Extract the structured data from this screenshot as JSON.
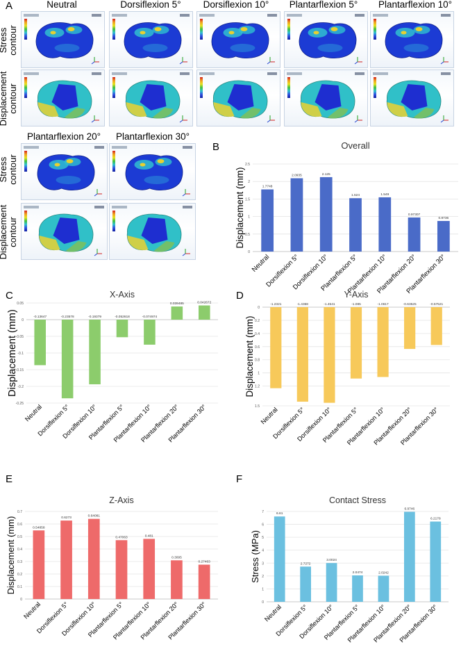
{
  "panelA": {
    "letter": "A",
    "top_titles": [
      "Neutral",
      "Dorsiflexion 5°",
      "Dorsiflexion 10°",
      "Plantarflexion 5°",
      "Plantarflexion 10°"
    ],
    "bottom_titles": [
      "Plantarflexion 20°",
      "Plantarflexion 30°"
    ],
    "row_labels": {
      "stress_1": "Stress",
      "stress_2": "contour",
      "disp_1": "Displacement",
      "disp_2": "contour"
    },
    "model_colors": {
      "stress_base": "#1c3bd4",
      "stress_hot": "#e8d030",
      "stress_mid": "#30c0d0",
      "disp_core": "#1e2ed0",
      "disp_mid": "#30c0c8",
      "disp_edge": "#d8d040"
    }
  },
  "chart_data": [
    {
      "id": "B",
      "letter": "B",
      "type": "bar",
      "title": "Overall",
      "ylabel": "Displacement (mm)",
      "color": "#4a6bc8",
      "categories": [
        "Neutral",
        "Dorsiflexion 5°",
        "Dorsiflexion 10°",
        "Plantarflexion 5°",
        "Plantarflexion 10°",
        "Plantarflexion 20°",
        "Plantarflexion 30°"
      ],
      "values": [
        1.7748,
        2.0935,
        2.125,
        1.524,
        1.549,
        0.97307,
        0.8736
      ],
      "value_labels": [
        "1.7748",
        "2.0935",
        "2.125",
        "1.524",
        "1.549",
        "0.97307",
        "0.8736"
      ],
      "ylim": [
        0,
        2.5
      ],
      "yticks": [
        0,
        0.5,
        1,
        1.5,
        2,
        2.5
      ],
      "ytick_labels": [
        "0",
        "0.5",
        "1",
        "1.5",
        "2",
        "2.5"
      ],
      "grid": true
    },
    {
      "id": "C",
      "letter": "C",
      "type": "bar",
      "title": "X-Axis",
      "ylabel": "Displacement (mm)",
      "color": "#8ccc6c",
      "categories": [
        "Neutral",
        "Dorsiflexion 5°",
        "Dorsiflexion 10°",
        "Plantarflexion 5°",
        "Plantarflexion 10°",
        "Plantarflexion 20°",
        "Plantarflexion 30°"
      ],
      "values": [
        -0.13647,
        -0.23578,
        -0.19379,
        -0.052618,
        -0.074974,
        0.039485,
        0.042672
      ],
      "value_labels": [
        "-0.13647",
        "-0.23578",
        "-0.19379",
        "-0.052618",
        "-0.074974",
        "0.039485",
        "0.042672"
      ],
      "ylim": [
        -0.25,
        0.05
      ],
      "yticks": [
        -0.25,
        -0.2,
        -0.15,
        -0.1,
        -0.05,
        0,
        0.05
      ],
      "ytick_labels": [
        "-0.25",
        "-0.2",
        "-0.15",
        "-0.1",
        "-0.05",
        "0",
        "0.05"
      ],
      "labels_at_zero": true,
      "grid": true
    },
    {
      "id": "D",
      "letter": "D",
      "type": "bar",
      "title": "Y-Axis",
      "ylabel": "Displacement (mm)",
      "color": "#f7c95a",
      "categories": [
        "Neutral",
        "Dorsiflexion 5°",
        "Dorsiflexion 10°",
        "Plantarflexion 5°",
        "Plantarflexion 10°",
        "Plantarflexion 20°",
        "Plantarflexion 30°"
      ],
      "values": [
        -1.2321,
        -1.4368,
        -1.4541,
        -1.085,
        -1.0617,
        -0.63525,
        -0.57521
      ],
      "value_labels": [
        "-1.2321",
        "-1.4368",
        "-1.4541",
        "-1.085",
        "-1.0617",
        "-0.63525",
        "-0.57521"
      ],
      "ylim": [
        -1.5,
        0
      ],
      "yticks": [
        0,
        -0.2,
        -0.4,
        -0.6,
        -0.8,
        -1,
        -1.2,
        -1.5
      ],
      "ytick_labels": [
        "0",
        "0.2",
        "0.4",
        "0.6",
        "0.8",
        "1",
        "1.2",
        "1.5"
      ],
      "labels_at_zero": true,
      "grid": true
    },
    {
      "id": "E",
      "letter": "E",
      "type": "bar",
      "title": "Z-Axis",
      "ylabel": "Displacement (mm)",
      "color": "#ee6a6a",
      "categories": [
        "Neutral",
        "Dorsiflexion 5°",
        "Dorsiflexion 10°",
        "Plantarflexion 5°",
        "Plantarflexion 10°",
        "Plantarflexion 20°",
        "Plantarflexion 30°"
      ],
      "values": [
        0.54858,
        0.6273,
        0.64081,
        0.47063,
        0.481,
        0.3095,
        0.27463
      ],
      "value_labels": [
        "0.54858",
        "0.6273",
        "0.64081",
        "0.47063",
        "0.481",
        "0.3095",
        "0.27463"
      ],
      "ylim": [
        0,
        0.7
      ],
      "yticks": [
        0,
        0.1,
        0.2,
        0.3,
        0.4,
        0.5,
        0.6,
        0.7
      ],
      "ytick_labels": [
        "0",
        "0.1",
        "0.2",
        "0.3",
        "0.4",
        "0.5",
        "0.6",
        "0.7"
      ],
      "grid": true
    },
    {
      "id": "F",
      "letter": "F",
      "type": "bar",
      "title": "Contact Stress",
      "ylabel": "Stress (MPa)",
      "color": "#6bc0e0",
      "categories": [
        "Neutral",
        "Dorsiflexion 5°",
        "Dorsiflexion 10°",
        "Plantarflexion 5°",
        "Plantarflexion 10°",
        "Plantarflexion 20°",
        "Plantarflexion 30°"
      ],
      "values": [
        6.61,
        2.7272,
        3.0024,
        2.0474,
        2.0242,
        6.9746,
        6.2178
      ],
      "value_labels": [
        "6.61",
        "2.7272",
        "3.0024",
        "2.0474",
        "2.0242",
        "6.9746",
        "6.2178"
      ],
      "ylim": [
        0,
        7
      ],
      "yticks": [
        0,
        1,
        2,
        3,
        4,
        5,
        6,
        7
      ],
      "ytick_labels": [
        "0",
        "1",
        "2",
        "3",
        "4",
        "5",
        "6",
        "7"
      ],
      "grid": true
    }
  ]
}
